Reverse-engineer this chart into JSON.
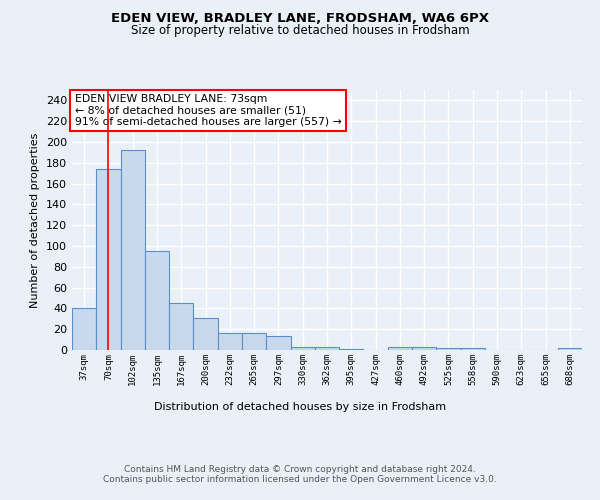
{
  "title1": "EDEN VIEW, BRADLEY LANE, FRODSHAM, WA6 6PX",
  "title2": "Size of property relative to detached houses in Frodsham",
  "xlabel": "Distribution of detached houses by size in Frodsham",
  "ylabel": "Number of detached properties",
  "bar_labels": [
    "37sqm",
    "70sqm",
    "102sqm",
    "135sqm",
    "167sqm",
    "200sqm",
    "232sqm",
    "265sqm",
    "297sqm",
    "330sqm",
    "362sqm",
    "395sqm",
    "427sqm",
    "460sqm",
    "492sqm",
    "525sqm",
    "558sqm",
    "590sqm",
    "623sqm",
    "655sqm",
    "688sqm"
  ],
  "bar_values": [
    40,
    174,
    192,
    95,
    45,
    31,
    16,
    16,
    13,
    3,
    3,
    1,
    0,
    3,
    3,
    2,
    2,
    0,
    0,
    0,
    2
  ],
  "bar_color": "#c9d9ed",
  "bar_edge_color": "#5b8fc9",
  "annotation_box_text": "EDEN VIEW BRADLEY LANE: 73sqm\n← 8% of detached houses are smaller (51)\n91% of semi-detached houses are larger (557) →",
  "annotation_box_color": "white",
  "annotation_box_edge_color": "red",
  "vline_x": 1,
  "vline_color": "red",
  "ylim": [
    0,
    250
  ],
  "yticks": [
    0,
    20,
    40,
    60,
    80,
    100,
    120,
    140,
    160,
    180,
    200,
    220,
    240
  ],
  "footnote": "Contains HM Land Registry data © Crown copyright and database right 2024.\nContains public sector information licensed under the Open Government Licence v3.0.",
  "bg_color": "#eaf0f8",
  "plot_bg_color": "#eaf0f8",
  "grid_color": "white"
}
